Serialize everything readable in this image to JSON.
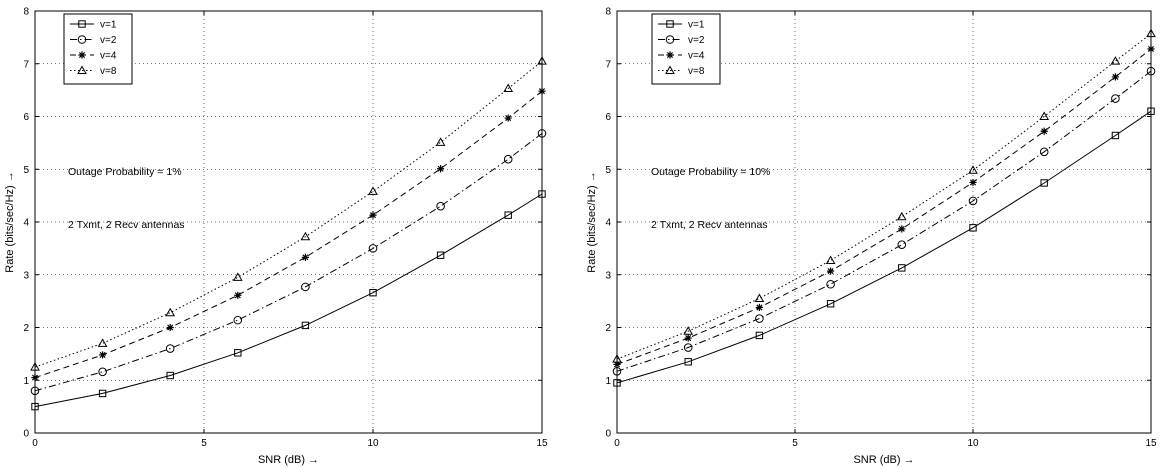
{
  "chart_data": [
    {
      "type": "line",
      "xlabel": "SNR (dB) →",
      "ylabel": "Rate (bits/sec/Hz) →",
      "xlim": [
        0,
        15
      ],
      "ylim": [
        0,
        8
      ],
      "xticks": [
        "0",
        "5",
        "10",
        "15"
      ],
      "yticks": [
        "0",
        "1",
        "2",
        "3",
        "4",
        "5",
        "6",
        "7",
        "8"
      ],
      "grid": true,
      "legend_position": "top-left",
      "annotations": [
        "Outage Probability = 1%",
        "2 Txmt, 2 Recv antennas"
      ],
      "x": [
        0,
        2,
        4,
        6,
        8,
        10,
        12,
        14,
        15
      ],
      "series": [
        {
          "name": "v=1",
          "marker": "square",
          "line": "solid",
          "values": [
            0.5,
            0.75,
            1.09,
            1.52,
            2.04,
            2.66,
            3.37,
            4.13,
            4.53
          ]
        },
        {
          "name": "v=2",
          "marker": "circle",
          "line": "dashdot",
          "values": [
            0.8,
            1.16,
            1.6,
            2.14,
            2.77,
            3.5,
            4.3,
            5.19,
            5.68
          ]
        },
        {
          "name": "v=4",
          "marker": "star",
          "line": "dashed",
          "values": [
            1.05,
            1.48,
            2.0,
            2.61,
            3.33,
            4.13,
            5.01,
            5.97,
            6.48
          ]
        },
        {
          "name": "v=8",
          "marker": "triangle",
          "line": "dotted",
          "values": [
            1.25,
            1.7,
            2.28,
            2.95,
            3.72,
            4.58,
            5.51,
            6.53,
            7.05
          ]
        }
      ]
    },
    {
      "type": "line",
      "xlabel": "SNR (dB) →",
      "ylabel": "Rate (bits/sec/Hz) →",
      "xlim": [
        0,
        15
      ],
      "ylim": [
        0,
        8
      ],
      "xticks": [
        "0",
        "5",
        "10",
        "15"
      ],
      "yticks": [
        "0",
        "1",
        "2",
        "3",
        "4",
        "5",
        "6",
        "7",
        "8"
      ],
      "grid": true,
      "legend_position": "top-left",
      "annotations": [
        "Outage Probability = 10%",
        "2 Txmt, 2 Recv antennas"
      ],
      "x": [
        0,
        2,
        4,
        6,
        8,
        10,
        12,
        14,
        15
      ],
      "series": [
        {
          "name": "v=1",
          "marker": "square",
          "line": "solid",
          "values": [
            0.95,
            1.35,
            1.85,
            2.45,
            3.13,
            3.89,
            4.74,
            5.64,
            6.1
          ]
        },
        {
          "name": "v=2",
          "marker": "circle",
          "line": "dashdot",
          "values": [
            1.17,
            1.62,
            2.17,
            2.82,
            3.57,
            4.4,
            5.33,
            6.34,
            6.86
          ]
        },
        {
          "name": "v=4",
          "marker": "star",
          "line": "dashed",
          "values": [
            1.3,
            1.8,
            2.38,
            3.07,
            3.87,
            4.75,
            5.72,
            6.75,
            7.28
          ]
        },
        {
          "name": "v=8",
          "marker": "triangle",
          "line": "dotted",
          "values": [
            1.4,
            1.93,
            2.55,
            3.27,
            4.1,
            4.98,
            6.0,
            7.05,
            7.57
          ]
        }
      ]
    }
  ]
}
